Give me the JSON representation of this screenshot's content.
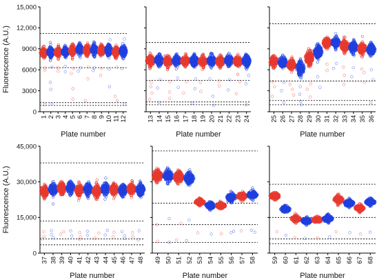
{
  "colors": {
    "red": "#e8392f",
    "blue": "#1f3fe0"
  },
  "chart_data": [
    {
      "type": "scatter",
      "ylabel": "Fluorescence (A.U.)",
      "xlabel": "Plate number",
      "ylim": [
        0,
        15000
      ],
      "yticks": [
        "0",
        "3000",
        "6000",
        "9000",
        "12,000",
        "15,000"
      ],
      "reference_lines": [
        11200,
        6300,
        1300,
        900
      ],
      "plates": [
        {
          "label": "1",
          "color": "red",
          "center": 8450,
          "spread": 650,
          "outliers": [
            6300,
            5900,
            1000
          ]
        },
        {
          "label": "2",
          "color": "blue",
          "center": 8550,
          "spread": 650,
          "outliers": [
            6400,
            4200,
            3200,
            1100
          ]
        },
        {
          "label": "3",
          "color": "red",
          "center": 8500,
          "spread": 650,
          "outliers": [
            6300,
            5800
          ]
        },
        {
          "label": "4",
          "color": "blue",
          "center": 8550,
          "spread": 650,
          "outliers": [
            6500,
            5700
          ]
        },
        {
          "label": "5",
          "color": "red",
          "center": 8800,
          "spread": 700,
          "outliers": [
            6200,
            5500,
            3300,
            1800
          ]
        },
        {
          "label": "6",
          "color": "blue",
          "center": 8900,
          "spread": 700,
          "outliers": [
            6300,
            5800
          ]
        },
        {
          "label": "7",
          "color": "red",
          "center": 8800,
          "spread": 700,
          "outliers": [
            6400,
            4700,
            1600
          ]
        },
        {
          "label": "8",
          "color": "blue",
          "center": 8850,
          "spread": 700,
          "outliers": [
            6300,
            5900
          ]
        },
        {
          "label": "9",
          "color": "red",
          "center": 8750,
          "spread": 700,
          "outliers": [
            6200,
            5200
          ]
        },
        {
          "label": "10",
          "color": "blue",
          "center": 8800,
          "spread": 750,
          "outliers": [
            10300,
            6100,
            3600
          ]
        },
        {
          "label": "11",
          "color": "red",
          "center": 8550,
          "spread": 700,
          "outliers": [
            6400,
            2200,
            1600
          ]
        },
        {
          "label": "12",
          "color": "blue",
          "center": 8650,
          "spread": 750,
          "outliers": [
            10400,
            6200,
            1100
          ]
        }
      ]
    },
    {
      "type": "scatter",
      "ylabel": "",
      "xlabel": "Plate number",
      "ylim": [
        0,
        15000
      ],
      "yticks": [],
      "reference_lines": [
        9900,
        4500,
        1400,
        1000
      ],
      "plates": [
        {
          "label": "13",
          "color": "red",
          "center": 7300,
          "spread": 700,
          "outliers": [
            4200,
            3600,
            2700,
            1800
          ]
        },
        {
          "label": "14",
          "color": "blue",
          "center": 7350,
          "spread": 700,
          "outliers": [
            4600,
            3400,
            1300
          ]
        },
        {
          "label": "15",
          "color": "red",
          "center": 7200,
          "spread": 700,
          "outliers": [
            4300,
            2800,
            1900
          ]
        },
        {
          "label": "16",
          "color": "blue",
          "center": 7300,
          "spread": 700,
          "outliers": [
            4800,
            3500
          ]
        },
        {
          "label": "17",
          "color": "red",
          "center": 7250,
          "spread": 700,
          "outliers": [
            4300,
            2700
          ]
        },
        {
          "label": "18",
          "color": "blue",
          "center": 7300,
          "spread": 700,
          "outliers": [
            4700,
            3300,
            1200
          ]
        },
        {
          "label": "19",
          "color": "red",
          "center": 7150,
          "spread": 700,
          "outliers": [
            4200,
            2900
          ]
        },
        {
          "label": "20",
          "color": "blue",
          "center": 7300,
          "spread": 700,
          "outliers": [
            4700,
            2200,
            900
          ]
        },
        {
          "label": "21",
          "color": "red",
          "center": 7200,
          "spread": 700,
          "outliers": [
            4400,
            3700
          ]
        },
        {
          "label": "22",
          "color": "blue",
          "center": 7350,
          "spread": 700,
          "outliers": [
            4600,
            3100
          ]
        },
        {
          "label": "23",
          "color": "red",
          "center": 7200,
          "spread": 700,
          "outliers": [
            4300,
            2600
          ]
        },
        {
          "label": "24",
          "color": "blue",
          "center": 7250,
          "spread": 750,
          "outliers": [
            5200,
            4000,
            1000
          ]
        }
      ]
    },
    {
      "type": "scatter",
      "ylabel": "",
      "xlabel": "Plate number",
      "ylim": [
        0,
        15000
      ],
      "yticks": [],
      "reference_lines": [
        12600,
        4400,
        1600,
        1000
      ],
      "plates": [
        {
          "label": "25",
          "color": "red",
          "center": 7200,
          "spread": 700,
          "outliers": [
            4300,
            3600,
            2200
          ]
        },
        {
          "label": "26",
          "color": "blue",
          "center": 7100,
          "spread": 700,
          "outliers": [
            4200,
            3000,
            1300
          ]
        },
        {
          "label": "27",
          "color": "red",
          "center": 6700,
          "spread": 700,
          "outliers": [
            3900,
            3200,
            2400
          ]
        },
        {
          "label": "28",
          "color": "blue",
          "center": 6200,
          "spread": 900,
          "outliers": [
            3600,
            2500,
            1500,
            1000
          ]
        },
        {
          "label": "29",
          "color": "red",
          "center": 7700,
          "spread": 1000,
          "outliers": [
            4000,
            3200,
            2100
          ]
        },
        {
          "label": "30",
          "color": "blue",
          "center": 8600,
          "spread": 900,
          "outliers": [
            5000,
            3500
          ]
        },
        {
          "label": "31",
          "color": "red",
          "center": 9900,
          "spread": 700,
          "outliers": [
            6800,
            5900
          ]
        },
        {
          "label": "32",
          "color": "blue",
          "center": 9900,
          "spread": 700,
          "outliers": [
            6900,
            6200
          ]
        },
        {
          "label": "33",
          "color": "red",
          "center": 9400,
          "spread": 750,
          "outliers": [
            6400,
            5200,
            3900
          ]
        },
        {
          "label": "34",
          "color": "blue",
          "center": 9200,
          "spread": 750,
          "outliers": [
            6300,
            5000
          ]
        },
        {
          "label": "35",
          "color": "red",
          "center": 9000,
          "spread": 750,
          "outliers": [
            6100,
            5600,
            4200
          ]
        },
        {
          "label": "36",
          "color": "blue",
          "center": 8900,
          "spread": 750,
          "outliers": [
            6000,
            4600,
            1300
          ]
        }
      ]
    },
    {
      "type": "scatter",
      "ylabel": "Fluorescence (A.U.)",
      "xlabel": "Plate number",
      "ylim": [
        0,
        45000
      ],
      "yticks": [
        "0",
        "15,000",
        "30,000",
        "45,000"
      ],
      "reference_lines": [
        38000,
        13500,
        6000,
        3500
      ],
      "plates": [
        {
          "label": "37",
          "color": "red",
          "center": 26000,
          "spread": 2300,
          "outliers": [
            9000,
            7000,
            6000
          ]
        },
        {
          "label": "38",
          "color": "blue",
          "center": 26800,
          "spread": 2300,
          "outliers": [
            9500,
            7800,
            6500
          ]
        },
        {
          "label": "39",
          "color": "red",
          "center": 27300,
          "spread": 2300,
          "outliers": [
            9000,
            8000
          ]
        },
        {
          "label": "40",
          "color": "blue",
          "center": 27500,
          "spread": 2300,
          "outliers": [
            9300,
            7200
          ]
        },
        {
          "label": "41",
          "color": "red",
          "center": 26500,
          "spread": 2300,
          "outliers": [
            8700,
            6800,
            5800
          ]
        },
        {
          "label": "42",
          "color": "blue",
          "center": 26800,
          "spread": 2300,
          "outliers": [
            9200,
            7500
          ]
        },
        {
          "label": "43",
          "color": "red",
          "center": 26000,
          "spread": 2300,
          "outliers": [
            8400,
            6300
          ]
        },
        {
          "label": "44",
          "color": "blue",
          "center": 27000,
          "spread": 2300,
          "outliers": [
            9600,
            7600
          ]
        },
        {
          "label": "45",
          "color": "red",
          "center": 26800,
          "spread": 2300,
          "outliers": [
            8800,
            6900
          ]
        },
        {
          "label": "46",
          "color": "blue",
          "center": 26500,
          "spread": 2300,
          "outliers": [
            9100,
            7300,
            6200
          ]
        },
        {
          "label": "47",
          "color": "red",
          "center": 27000,
          "spread": 2300,
          "outliers": [
            8600,
            7000
          ]
        },
        {
          "label": "48",
          "color": "blue",
          "center": 26700,
          "spread": 2300,
          "outliers": [
            9400,
            5600
          ]
        }
      ]
    },
    {
      "type": "scatter",
      "ylabel": "",
      "xlabel": "Plate number",
      "ylim": [
        0,
        45000
      ],
      "yticks": [],
      "reference_lines": [
        43000,
        21000,
        12000,
        4500
      ],
      "plates": [
        {
          "label": "49",
          "color": "red",
          "center": 32500,
          "spread": 2300,
          "outliers": [
            12000,
            5000
          ]
        },
        {
          "label": "50",
          "color": "blue",
          "center": 32500,
          "spread": 2300,
          "outliers": [
            14500,
            4500
          ]
        },
        {
          "label": "51",
          "color": "red",
          "center": 32000,
          "spread": 2300,
          "outliers": [
            12500,
            5500
          ]
        },
        {
          "label": "52",
          "color": "blue",
          "center": 31500,
          "spread": 2300,
          "outliers": [
            14000,
            5200
          ]
        },
        {
          "label": "53",
          "color": "red",
          "center": 21500,
          "spread": 1300,
          "outliers": [
            8500
          ]
        },
        {
          "label": "54",
          "color": "blue",
          "center": 20000,
          "spread": 1300,
          "outliers": [
            8000
          ]
        },
        {
          "label": "55",
          "color": "red",
          "center": 20000,
          "spread": 1200,
          "outliers": [
            8200
          ]
        },
        {
          "label": "56",
          "color": "blue",
          "center": 23500,
          "spread": 1600,
          "outliers": [
            9200,
            8600
          ]
        },
        {
          "label": "57",
          "color": "red",
          "center": 24000,
          "spread": 1500,
          "outliers": [
            9400
          ]
        },
        {
          "label": "58",
          "color": "blue",
          "center": 24500,
          "spread": 1500,
          "outliers": [
            9600,
            8800
          ]
        }
      ]
    },
    {
      "type": "scatter",
      "ylabel": "",
      "xlabel": "Plate number",
      "ylim": [
        0,
        45000
      ],
      "yticks": [],
      "reference_lines": [
        29000,
        15000,
        6000,
        4000
      ],
      "plates": [
        {
          "label": "59",
          "color": "red",
          "center": 24000,
          "spread": 1400,
          "outliers": [
            9000
          ]
        },
        {
          "label": "60",
          "color": "blue",
          "center": 18500,
          "spread": 1300,
          "outliers": [
            7500
          ]
        },
        {
          "label": "61",
          "color": "red",
          "center": 14500,
          "spread": 1300,
          "outliers": [
            6500
          ]
        },
        {
          "label": "62",
          "color": "blue",
          "center": 13500,
          "spread": 1200,
          "outliers": [
            6200
          ]
        },
        {
          "label": "63",
          "color": "red",
          "center": 14000,
          "spread": 1200,
          "outliers": [
            6400
          ]
        },
        {
          "label": "64",
          "color": "blue",
          "center": 14500,
          "spread": 1300,
          "outliers": [
            6800
          ]
        },
        {
          "label": "65",
          "color": "red",
          "center": 22500,
          "spread": 1500,
          "outliers": [
            9000
          ]
        },
        {
          "label": "66",
          "color": "blue",
          "center": 21000,
          "spread": 1400,
          "outliers": [
            8600
          ]
        },
        {
          "label": "67",
          "color": "red",
          "center": 19000,
          "spread": 1400,
          "outliers": [
            8000
          ]
        },
        {
          "label": "68",
          "color": "blue",
          "center": 21500,
          "spread": 1400,
          "outliers": [
            8800
          ]
        }
      ]
    }
  ]
}
